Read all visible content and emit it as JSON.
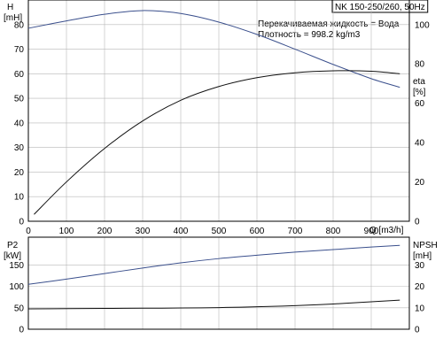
{
  "header": {
    "title": "NK 150-250/260, 50Hz",
    "liquid_line": "Перекачиваемая жидкость = Вода",
    "density_line": "Плотность = 998.2 kg/m3"
  },
  "chart_data": [
    {
      "type": "line",
      "panel": "top",
      "xlabel": "Q [m3/h]",
      "x_ticks": [
        0,
        100,
        200,
        300,
        400,
        500,
        600,
        700,
        800,
        900
      ],
      "xlim": [
        0,
        1000
      ],
      "left_axis": {
        "label_top": "H",
        "label_bottom": "[mH]",
        "ylim": [
          0,
          90
        ],
        "ticks": [
          0,
          10,
          20,
          30,
          40,
          50,
          60,
          70,
          80
        ]
      },
      "right_axis": {
        "label_top": "eta",
        "label_bottom": "[%]",
        "ylim": [
          0,
          112.5
        ],
        "ticks": [
          0,
          20,
          40,
          60,
          80,
          100
        ]
      },
      "grid": true,
      "series": [
        {
          "axis": "left",
          "color": "#3a4f8c",
          "x": [
            0,
            100,
            200,
            300,
            400,
            500,
            600,
            700,
            800,
            900,
            975
          ],
          "values": [
            78.5,
            81.5,
            84.2,
            85.7,
            84.5,
            81,
            76,
            70,
            63.8,
            58,
            54.5
          ]
        },
        {
          "axis": "right",
          "color": "#111111",
          "x": [
            15,
            100,
            200,
            300,
            400,
            500,
            600,
            700,
            800,
            900,
            975
          ],
          "values": [
            3.5,
            20,
            37,
            51,
            61.5,
            68.5,
            73,
            75.5,
            76.5,
            76.3,
            75
          ]
        }
      ]
    },
    {
      "type": "line",
      "panel": "bottom",
      "xlim": [
        0,
        1000
      ],
      "left_axis": {
        "label_top": "P2",
        "label_bottom": "[kW]",
        "ylim": [
          0,
          215
        ],
        "ticks": [
          0,
          50,
          100,
          150
        ]
      },
      "right_axis": {
        "label_top": "NPSH",
        "label_bottom": "[mH]",
        "ylim": [
          0,
          43
        ],
        "ticks": [
          0,
          10,
          20,
          30
        ]
      },
      "grid": true,
      "series": [
        {
          "axis": "left",
          "color": "#3a4f8c",
          "x": [
            0,
            100,
            200,
            300,
            400,
            500,
            600,
            700,
            800,
            900,
            975
          ],
          "values": [
            105,
            117,
            130,
            143,
            155,
            165,
            173,
            180,
            186,
            192,
            196
          ]
        },
        {
          "axis": "right",
          "color": "#111111",
          "x": [
            0,
            100,
            200,
            300,
            400,
            500,
            600,
            700,
            800,
            900,
            975
          ],
          "values": [
            9.5,
            9.6,
            9.7,
            9.8,
            9.9,
            10.1,
            10.5,
            11,
            11.8,
            12.8,
            13.6
          ]
        }
      ]
    }
  ]
}
